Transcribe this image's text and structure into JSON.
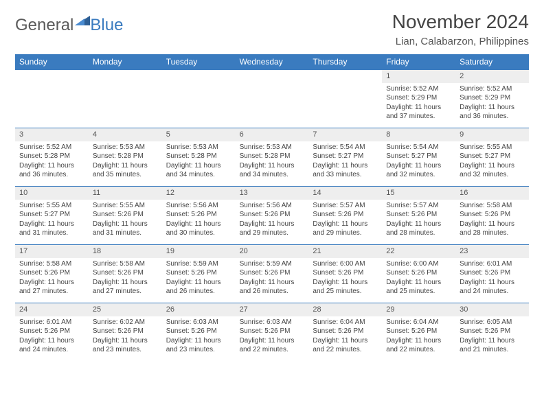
{
  "logo": {
    "text1": "General",
    "text2": "Blue"
  },
  "header": {
    "title": "November 2024",
    "location": "Lian, Calabarzon, Philippines"
  },
  "colors": {
    "header_bar": "#3a7bbf",
    "row_stripe": "#eeeeee",
    "text": "#444444",
    "bg": "#ffffff"
  },
  "daysOfWeek": [
    "Sunday",
    "Monday",
    "Tuesday",
    "Wednesday",
    "Thursday",
    "Friday",
    "Saturday"
  ],
  "weeks": [
    [
      {
        "n": "",
        "sr": "",
        "ss": "",
        "dl": ""
      },
      {
        "n": "",
        "sr": "",
        "ss": "",
        "dl": ""
      },
      {
        "n": "",
        "sr": "",
        "ss": "",
        "dl": ""
      },
      {
        "n": "",
        "sr": "",
        "ss": "",
        "dl": ""
      },
      {
        "n": "",
        "sr": "",
        "ss": "",
        "dl": ""
      },
      {
        "n": "1",
        "sr": "Sunrise: 5:52 AM",
        "ss": "Sunset: 5:29 PM",
        "dl": "Daylight: 11 hours and 37 minutes."
      },
      {
        "n": "2",
        "sr": "Sunrise: 5:52 AM",
        "ss": "Sunset: 5:29 PM",
        "dl": "Daylight: 11 hours and 36 minutes."
      }
    ],
    [
      {
        "n": "3",
        "sr": "Sunrise: 5:52 AM",
        "ss": "Sunset: 5:28 PM",
        "dl": "Daylight: 11 hours and 36 minutes."
      },
      {
        "n": "4",
        "sr": "Sunrise: 5:53 AM",
        "ss": "Sunset: 5:28 PM",
        "dl": "Daylight: 11 hours and 35 minutes."
      },
      {
        "n": "5",
        "sr": "Sunrise: 5:53 AM",
        "ss": "Sunset: 5:28 PM",
        "dl": "Daylight: 11 hours and 34 minutes."
      },
      {
        "n": "6",
        "sr": "Sunrise: 5:53 AM",
        "ss": "Sunset: 5:28 PM",
        "dl": "Daylight: 11 hours and 34 minutes."
      },
      {
        "n": "7",
        "sr": "Sunrise: 5:54 AM",
        "ss": "Sunset: 5:27 PM",
        "dl": "Daylight: 11 hours and 33 minutes."
      },
      {
        "n": "8",
        "sr": "Sunrise: 5:54 AM",
        "ss": "Sunset: 5:27 PM",
        "dl": "Daylight: 11 hours and 32 minutes."
      },
      {
        "n": "9",
        "sr": "Sunrise: 5:55 AM",
        "ss": "Sunset: 5:27 PM",
        "dl": "Daylight: 11 hours and 32 minutes."
      }
    ],
    [
      {
        "n": "10",
        "sr": "Sunrise: 5:55 AM",
        "ss": "Sunset: 5:27 PM",
        "dl": "Daylight: 11 hours and 31 minutes."
      },
      {
        "n": "11",
        "sr": "Sunrise: 5:55 AM",
        "ss": "Sunset: 5:26 PM",
        "dl": "Daylight: 11 hours and 31 minutes."
      },
      {
        "n": "12",
        "sr": "Sunrise: 5:56 AM",
        "ss": "Sunset: 5:26 PM",
        "dl": "Daylight: 11 hours and 30 minutes."
      },
      {
        "n": "13",
        "sr": "Sunrise: 5:56 AM",
        "ss": "Sunset: 5:26 PM",
        "dl": "Daylight: 11 hours and 29 minutes."
      },
      {
        "n": "14",
        "sr": "Sunrise: 5:57 AM",
        "ss": "Sunset: 5:26 PM",
        "dl": "Daylight: 11 hours and 29 minutes."
      },
      {
        "n": "15",
        "sr": "Sunrise: 5:57 AM",
        "ss": "Sunset: 5:26 PM",
        "dl": "Daylight: 11 hours and 28 minutes."
      },
      {
        "n": "16",
        "sr": "Sunrise: 5:58 AM",
        "ss": "Sunset: 5:26 PM",
        "dl": "Daylight: 11 hours and 28 minutes."
      }
    ],
    [
      {
        "n": "17",
        "sr": "Sunrise: 5:58 AM",
        "ss": "Sunset: 5:26 PM",
        "dl": "Daylight: 11 hours and 27 minutes."
      },
      {
        "n": "18",
        "sr": "Sunrise: 5:58 AM",
        "ss": "Sunset: 5:26 PM",
        "dl": "Daylight: 11 hours and 27 minutes."
      },
      {
        "n": "19",
        "sr": "Sunrise: 5:59 AM",
        "ss": "Sunset: 5:26 PM",
        "dl": "Daylight: 11 hours and 26 minutes."
      },
      {
        "n": "20",
        "sr": "Sunrise: 5:59 AM",
        "ss": "Sunset: 5:26 PM",
        "dl": "Daylight: 11 hours and 26 minutes."
      },
      {
        "n": "21",
        "sr": "Sunrise: 6:00 AM",
        "ss": "Sunset: 5:26 PM",
        "dl": "Daylight: 11 hours and 25 minutes."
      },
      {
        "n": "22",
        "sr": "Sunrise: 6:00 AM",
        "ss": "Sunset: 5:26 PM",
        "dl": "Daylight: 11 hours and 25 minutes."
      },
      {
        "n": "23",
        "sr": "Sunrise: 6:01 AM",
        "ss": "Sunset: 5:26 PM",
        "dl": "Daylight: 11 hours and 24 minutes."
      }
    ],
    [
      {
        "n": "24",
        "sr": "Sunrise: 6:01 AM",
        "ss": "Sunset: 5:26 PM",
        "dl": "Daylight: 11 hours and 24 minutes."
      },
      {
        "n": "25",
        "sr": "Sunrise: 6:02 AM",
        "ss": "Sunset: 5:26 PM",
        "dl": "Daylight: 11 hours and 23 minutes."
      },
      {
        "n": "26",
        "sr": "Sunrise: 6:03 AM",
        "ss": "Sunset: 5:26 PM",
        "dl": "Daylight: 11 hours and 23 minutes."
      },
      {
        "n": "27",
        "sr": "Sunrise: 6:03 AM",
        "ss": "Sunset: 5:26 PM",
        "dl": "Daylight: 11 hours and 22 minutes."
      },
      {
        "n": "28",
        "sr": "Sunrise: 6:04 AM",
        "ss": "Sunset: 5:26 PM",
        "dl": "Daylight: 11 hours and 22 minutes."
      },
      {
        "n": "29",
        "sr": "Sunrise: 6:04 AM",
        "ss": "Sunset: 5:26 PM",
        "dl": "Daylight: 11 hours and 22 minutes."
      },
      {
        "n": "30",
        "sr": "Sunrise: 6:05 AM",
        "ss": "Sunset: 5:26 PM",
        "dl": "Daylight: 11 hours and 21 minutes."
      }
    ]
  ]
}
